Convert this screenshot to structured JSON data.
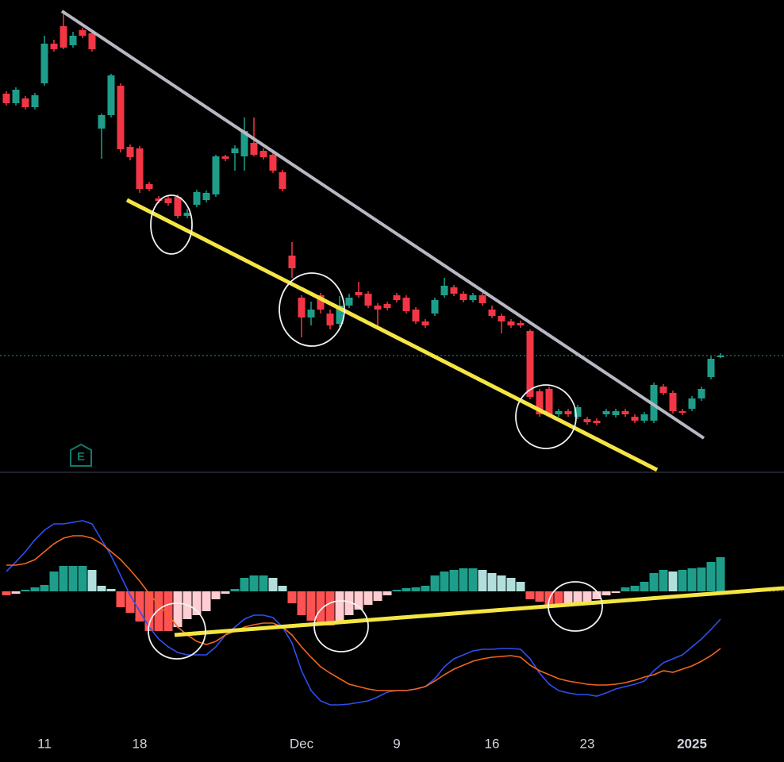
{
  "chart_data": [
    {
      "type": "candlestick",
      "categories": [
        null,
        null,
        null,
        null,
        "11",
        null,
        null,
        null,
        null,
        null,
        null,
        null,
        null,
        null,
        "18",
        null,
        null,
        null,
        null,
        null,
        null,
        null,
        null,
        null,
        null,
        null,
        null,
        null,
        null,
        null,
        null,
        "Dec",
        null,
        null,
        null,
        null,
        null,
        null,
        null,
        null,
        null,
        "9",
        null,
        null,
        null,
        null,
        null,
        null,
        null,
        null,
        null,
        "16",
        null,
        null,
        null,
        null,
        null,
        null,
        null,
        null,
        null,
        "23",
        null,
        null,
        null,
        null,
        null,
        null,
        null,
        null,
        null,
        null,
        "2025",
        null,
        null,
        null
      ],
      "open": [
        477,
        465,
        471,
        460,
        490,
        540,
        562,
        538,
        557,
        553,
        433,
        450,
        487,
        410,
        408,
        363,
        345,
        345,
        347,
        323,
        337,
        343,
        350,
        398,
        402,
        398,
        415,
        405,
        400,
        378,
        273,
        220,
        195,
        223,
        200,
        187,
        210,
        227,
        225,
        210,
        212,
        223,
        220,
        205,
        190,
        200,
        223,
        233,
        225,
        217,
        223,
        205,
        197,
        190,
        188,
        178,
        102,
        105,
        73,
        77,
        70,
        67,
        65,
        73,
        72,
        77,
        70,
        65,
        65,
        108,
        100,
        77,
        80,
        93,
        120,
        145
      ],
      "high": [
        480,
        485,
        474,
        478,
        550,
        545,
        580,
        555,
        560,
        556,
        452,
        502,
        490,
        413,
        411,
        366,
        348,
        348,
        350,
        332,
        356,
        355,
        400,
        400,
        412,
        447,
        447,
        408,
        403,
        381,
        290,
        223,
        215,
        226,
        205,
        222,
        225,
        240,
        228,
        213,
        215,
        226,
        223,
        208,
        193,
        220,
        245,
        236,
        228,
        226,
        226,
        210,
        200,
        193,
        191,
        180,
        105,
        108,
        80,
        80,
        85,
        70,
        68,
        80,
        80,
        80,
        73,
        76,
        113,
        111,
        103,
        80,
        96,
        108,
        146,
        150
      ],
      "low": [
        462,
        462,
        457,
        457,
        487,
        530,
        533,
        535,
        547,
        530,
        395,
        447,
        403,
        393,
        352,
        354,
        339,
        336,
        320,
        320,
        334,
        340,
        347,
        392,
        380,
        380,
        398,
        394,
        377,
        354,
        245,
        170,
        185,
        200,
        180,
        183,
        207,
        220,
        207,
        185,
        204,
        214,
        200,
        187,
        182,
        197,
        220,
        222,
        214,
        214,
        210,
        194,
        175,
        182,
        182,
        92,
        70,
        70,
        70,
        70,
        67,
        60,
        59,
        70,
        69,
        70,
        62,
        62,
        62,
        97,
        74,
        72,
        77,
        90,
        117,
        144
      ],
      "close": [
        465,
        482,
        460,
        475,
        540,
        533,
        535,
        550,
        550,
        533,
        450,
        500,
        407,
        397,
        357,
        357,
        342,
        339,
        323,
        327,
        353,
        352,
        398,
        395,
        408,
        430,
        400,
        397,
        380,
        357,
        257,
        195,
        205,
        205,
        185,
        210,
        220,
        223,
        210,
        205,
        207,
        217,
        203,
        190,
        185,
        217,
        235,
        225,
        217,
        223,
        213,
        197,
        190,
        185,
        185,
        95,
        73,
        73,
        77,
        73,
        82,
        63,
        62,
        77,
        77,
        73,
        65,
        73,
        110,
        100,
        77,
        75,
        93,
        105,
        143,
        147
      ],
      "up_color": "#1e9e8a",
      "down_color": "#f23645",
      "ylim": [
        0,
        595
      ]
    },
    {
      "type": "macd",
      "histogram": {
        "values": [
          -5,
          -3,
          2,
          5,
          8,
          25,
          32,
          32,
          32,
          27,
          7,
          3,
          -20,
          -27,
          -38,
          -50,
          -50,
          -50,
          -45,
          -35,
          -30,
          -25,
          -10,
          -3,
          3,
          17,
          20,
          20,
          17,
          7,
          -15,
          -30,
          -37,
          -43,
          -43,
          -37,
          -30,
          -23,
          -17,
          -12,
          -5,
          2,
          4,
          5,
          7,
          20,
          25,
          27,
          29,
          29,
          27,
          23,
          20,
          17,
          12,
          -10,
          -13,
          -20,
          -20,
          -17,
          -15,
          -13,
          -10,
          -5,
          -2,
          5,
          7,
          12,
          23,
          27,
          25,
          27,
          29,
          30,
          37,
          43
        ],
        "colors": [
          "#1e9e8a",
          "#b2dfdb",
          "#ff5252",
          "#ffcdd2"
        ]
      },
      "series": [
        {
          "color": "#2f4ff0",
          "values": [
            25,
            37,
            50,
            65,
            77,
            85,
            85,
            87,
            89,
            85,
            65,
            45,
            20,
            -5,
            -25,
            -45,
            -60,
            -70,
            -77,
            -80,
            -80,
            -80,
            -70,
            -55,
            -45,
            -35,
            -30,
            -30,
            -33,
            -45,
            -65,
            -100,
            -125,
            -138,
            -143,
            -143,
            -142,
            -140,
            -138,
            -133,
            -127,
            -125,
            -125,
            -123,
            -120,
            -110,
            -95,
            -85,
            -80,
            -75,
            -73,
            -73,
            -72,
            -72,
            -73,
            -85,
            -103,
            -117,
            -125,
            -128,
            -130,
            -130,
            -132,
            -128,
            -123,
            -120,
            -117,
            -113,
            -100,
            -90,
            -85,
            -80,
            -70,
            -60,
            -48,
            -35
          ]
        },
        {
          "color": "#f2661c",
          "values": [
            33,
            33,
            35,
            40,
            50,
            60,
            67,
            70,
            70,
            67,
            60,
            50,
            40,
            27,
            13,
            -3,
            -17,
            -30,
            -45,
            -55,
            -63,
            -67,
            -63,
            -55,
            -50,
            -45,
            -42,
            -40,
            -40,
            -45,
            -55,
            -70,
            -83,
            -95,
            -103,
            -110,
            -117,
            -120,
            -123,
            -125,
            -125,
            -125,
            -125,
            -123,
            -120,
            -113,
            -105,
            -98,
            -93,
            -88,
            -85,
            -83,
            -82,
            -81,
            -83,
            -93,
            -100,
            -105,
            -110,
            -113,
            -115,
            -117,
            -118,
            -118,
            -117,
            -115,
            -112,
            -108,
            -105,
            -100,
            -102,
            -98,
            -94,
            -88,
            -81,
            -72
          ]
        }
      ],
      "ylim": [
        -175,
        145
      ]
    }
  ]
}
